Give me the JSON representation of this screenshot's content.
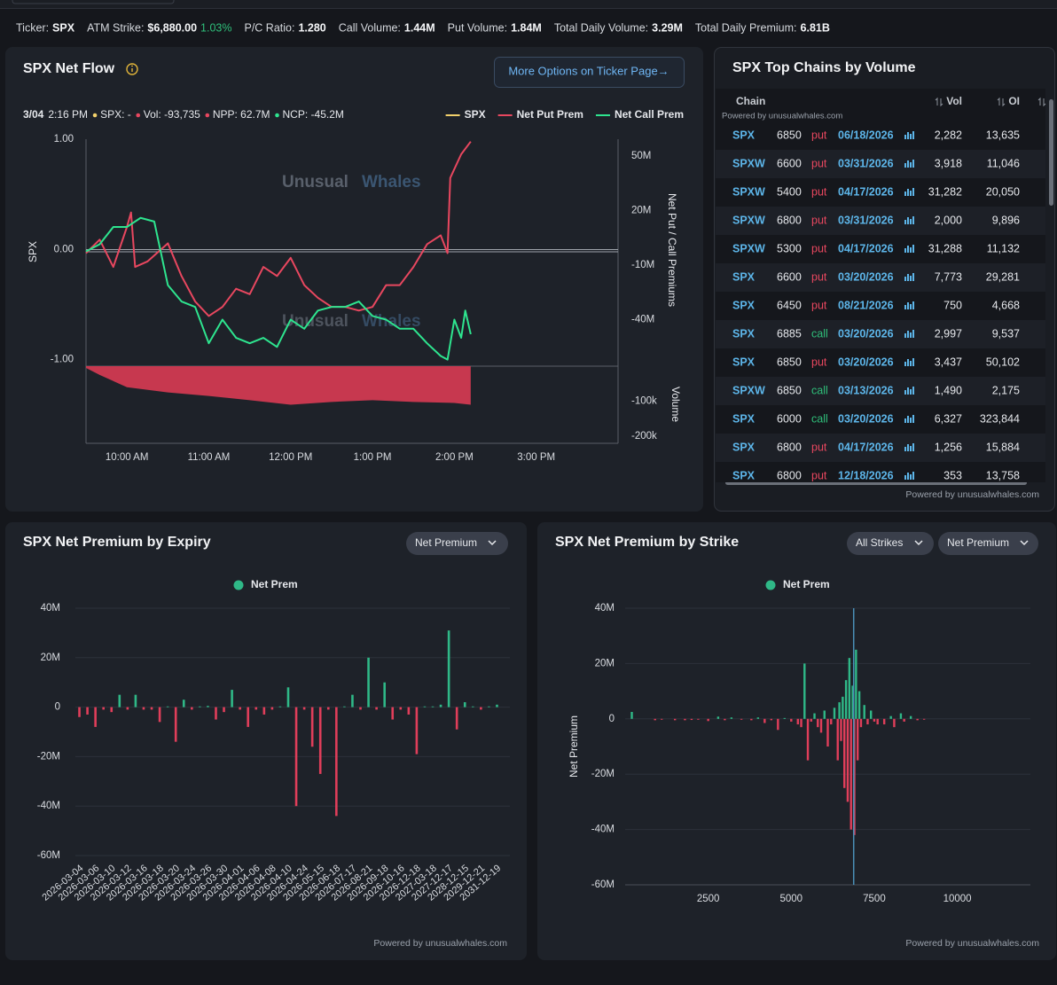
{
  "header": {
    "items": [
      {
        "label": "Ticker:",
        "value": "SPX"
      },
      {
        "label": "ATM Strike:",
        "value": "$6,880.00"
      },
      {
        "label": "P/C Ratio:",
        "value": "1.280"
      },
      {
        "label": "Call Volume:",
        "value": "1.44M"
      },
      {
        "label": "Put Volume:",
        "value": "1.84M"
      },
      {
        "label": "Total Daily Volume:",
        "value": "3.29M"
      },
      {
        "label": "Total Daily Premium:",
        "value": "6.81B"
      }
    ],
    "atm_change": "1.03%"
  },
  "powered_by": "Powered by unusualwhales.com",
  "net_flow": {
    "title": "SPX Net Flow",
    "button": "More Options on Ticker Page→",
    "tooltip": {
      "date": "3/04",
      "time": "2:16 PM",
      "spx": "SPX: -",
      "vol": "Vol: -93,735",
      "npp": "NPP: 62.7M",
      "ncp": "NCP: -45.2M"
    },
    "watermark": [
      "Unusual",
      "Whales"
    ],
    "chart": {
      "type": "line",
      "y_label": "SPX",
      "y2_label": "Net Put / Call Premiums",
      "y3_label": "Volume",
      "xlim": [
        "09:30",
        "16:00"
      ],
      "xticks": [
        {
          "value": "10:00",
          "label": "10:00 AM"
        },
        {
          "value": "11:00",
          "label": "11:00 AM"
        },
        {
          "value": "12:00",
          "label": "12:00 PM"
        },
        {
          "value": "13:00",
          "label": "1:00 PM"
        },
        {
          "value": "14:00",
          "label": "2:00 PM"
        },
        {
          "value": "15:00",
          "label": "3:00 PM"
        }
      ],
      "ylim": [
        -1.06,
        1.0
      ],
      "yticks": [
        {
          "value": 1,
          "label": "1.00"
        },
        {
          "value": 0,
          "label": "0.00"
        },
        {
          "value": -1,
          "label": "-1.00"
        }
      ],
      "y2lim": [
        -65600000,
        59300000
      ],
      "y2ticks": [
        {
          "value": 50000000,
          "label": "50M"
        },
        {
          "value": 20000000,
          "label": "20M"
        },
        {
          "value": -10000000,
          "label": "-10M"
        },
        {
          "value": -40000000,
          "label": "-40M"
        }
      ],
      "y3lim": [
        -220000,
        0
      ],
      "y3ticks": [
        {
          "value": -100000,
          "label": "-100k"
        },
        {
          "value": -200000,
          "label": "-200k"
        }
      ],
      "series": [
        {
          "name": "SPX",
          "color": "#f2d16b",
          "x": [],
          "values": []
        },
        {
          "name": "Net Put Prem",
          "color": "#e8475f",
          "axis": "y2",
          "x": [
            "09:30",
            "09:40",
            "09:50",
            "10:00",
            "10:03",
            "10:06",
            "10:15",
            "10:30",
            "10:40",
            "10:50",
            "11:00",
            "11:10",
            "11:20",
            "11:30",
            "11:40",
            "11:50",
            "12:00",
            "12:10",
            "12:20",
            "12:30",
            "12:40",
            "12:50",
            "13:00",
            "13:10",
            "13:20",
            "13:30",
            "13:40",
            "13:50",
            "13:55",
            "13:57",
            "14:05",
            "14:12"
          ],
          "values": [
            -3400000,
            4000000,
            -11000000,
            11000000,
            19000000,
            -11000000,
            -8000000,
            2000000,
            -16000000,
            -30000000,
            -38000000,
            -33000000,
            -23000000,
            -26000000,
            -11000000,
            -16000000,
            -6000000,
            -21000000,
            -28000000,
            -33000000,
            -33000000,
            -35000000,
            -33000000,
            -21000000,
            -21000000,
            -11000000,
            1500000,
            6400000,
            -3400000,
            38000000,
            51000000,
            58000000
          ]
        },
        {
          "name": "Net Call Prem",
          "color": "#2ee58f",
          "axis": "y2",
          "x": [
            "09:30",
            "09:40",
            "09:50",
            "10:00",
            "10:10",
            "10:20",
            "10:30",
            "10:40",
            "10:50",
            "11:00",
            "11:10",
            "11:20",
            "11:30",
            "11:40",
            "11:50",
            "12:00",
            "12:10",
            "12:20",
            "12:30",
            "12:40",
            "12:50",
            "13:00",
            "13:10",
            "13:20",
            "13:30",
            "13:40",
            "13:50",
            "13:55",
            "14:00",
            "14:05",
            "14:08",
            "14:12"
          ],
          "values": [
            -2500000,
            1500000,
            11000000,
            11000000,
            16000000,
            14000000,
            -21000000,
            -30000000,
            -33000000,
            -53000000,
            -40000000,
            -50000000,
            -53000000,
            -50000000,
            -55000000,
            -40000000,
            -45000000,
            -35000000,
            -33000000,
            -33000000,
            -30000000,
            -38000000,
            -40000000,
            -45000000,
            -45000000,
            -53000000,
            -60000000,
            -62000000,
            -40000000,
            -50000000,
            -35000000,
            -48000000
          ]
        }
      ],
      "volume": {
        "color": "#c7384f",
        "axis": "y3",
        "x": [
          "09:30",
          "09:40",
          "10:00",
          "10:30",
          "11:00",
          "11:30",
          "12:00",
          "12:30",
          "13:00",
          "13:30",
          "14:00",
          "14:12"
        ],
        "values": [
          -5000,
          -25000,
          -60000,
          -75000,
          -85000,
          -97000,
          -110000,
          -102000,
          -97000,
          -102000,
          -105000,
          -110000
        ]
      }
    }
  },
  "top_chains": {
    "title": "SPX Top Chains by Volume",
    "columns": [
      "Chain",
      "Vol",
      "OI"
    ],
    "rows": [
      [
        "SPX",
        "6850",
        "put",
        "06/18/2026",
        "2,282",
        "13,635"
      ],
      [
        "SPXW",
        "6600",
        "put",
        "03/31/2026",
        "3,918",
        "11,046"
      ],
      [
        "SPXW",
        "5400",
        "put",
        "04/17/2026",
        "31,282",
        "20,050"
      ],
      [
        "SPXW",
        "6800",
        "put",
        "03/31/2026",
        "2,000",
        "9,896"
      ],
      [
        "SPXW",
        "5300",
        "put",
        "04/17/2026",
        "31,288",
        "11,132"
      ],
      [
        "SPX",
        "6600",
        "put",
        "03/20/2026",
        "7,773",
        "29,281"
      ],
      [
        "SPX",
        "6450",
        "put",
        "08/21/2026",
        "750",
        "4,668"
      ],
      [
        "SPX",
        "6885",
        "call",
        "03/20/2026",
        "2,997",
        "9,537"
      ],
      [
        "SPX",
        "6850",
        "put",
        "03/20/2026",
        "3,437",
        "50,102"
      ],
      [
        "SPXW",
        "6850",
        "call",
        "03/13/2026",
        "1,490",
        "2,175"
      ],
      [
        "SPX",
        "6000",
        "call",
        "03/20/2026",
        "6,327",
        "323,844"
      ],
      [
        "SPX",
        "6800",
        "put",
        "04/17/2026",
        "1,256",
        "15,884"
      ],
      [
        "SPX",
        "6800",
        "put",
        "12/18/2026",
        "353",
        "13,758"
      ]
    ]
  },
  "expiry": {
    "title": "SPX Net Premium by Expiry",
    "dropdown": "Net Premium",
    "chart": {
      "type": "bar",
      "categories": [
        "2026-03-04",
        null,
        "2026-03-06",
        null,
        "2026-03-10",
        null,
        "2026-03-12",
        null,
        "2026-03-16",
        null,
        "2026-03-18",
        null,
        "2026-03-20",
        null,
        "2026-03-24",
        null,
        "2026-03-26",
        null,
        "2026-03-30",
        null,
        "2026-04-01",
        null,
        "2026-04-06",
        null,
        "2026-04-08",
        null,
        "2026-04-10",
        null,
        "2026-04-24",
        null,
        "2026-05-15",
        null,
        "2026-06-18",
        null,
        "2026-07-17",
        null,
        "2026-08-21",
        null,
        "2026-09-18",
        null,
        "2026-10-16",
        null,
        "2026-12-18",
        null,
        "2027-03-18",
        null,
        "2027-12-17",
        null,
        "2028-12-15",
        null,
        "2029-12-21",
        null,
        "2031-12-19"
      ],
      "series": [
        {
          "name": "Net Prem",
          "color": "#2fb887",
          "negative_color": "#e03e5a",
          "values": [
            -4000000,
            -3000000,
            -8000000,
            -1000000,
            -2000000,
            5000000,
            -1000000,
            5000000,
            -1000000,
            -1000000,
            -6000000,
            300000,
            -14000000,
            3000000,
            -1000000,
            300000,
            500000,
            -5000000,
            -2000000,
            7000000,
            -1000000,
            -8000000,
            -1000000,
            -3000000,
            -1000000,
            300000,
            8000000,
            -40000000,
            -1000000,
            -16000000,
            -27000000,
            -1000000,
            -44000000,
            300000,
            5000000,
            -1000000,
            20000000,
            -1000000,
            10000000,
            -5000000,
            -1000000,
            -3000000,
            -19000000,
            300000,
            300000,
            1000000,
            31000000,
            -9000000,
            2000000,
            300000,
            -1000000,
            300000,
            1000000
          ]
        }
      ],
      "ylim": [
        -60000000,
        40000000
      ],
      "yticks": [
        {
          "value": 40000000,
          "label": "40M"
        },
        {
          "value": 20000000,
          "label": "20M"
        },
        {
          "value": 0,
          "label": "0"
        },
        {
          "value": -20000000,
          "label": "-20M"
        },
        {
          "value": -40000000,
          "label": "-40M"
        },
        {
          "value": -60000000,
          "label": "-60M"
        }
      ],
      "grid": true
    }
  },
  "strike": {
    "title": "SPX Net Premium by Strike",
    "dropdowns": [
      "All Strikes",
      "Net Premium"
    ],
    "chart": {
      "type": "bar",
      "y_label": "Net Premium",
      "xlim": [
        0,
        12200
      ],
      "xticks": [
        2500,
        5000,
        7500,
        10000
      ],
      "ylim": [
        -60000000,
        40000000
      ],
      "yticks": [
        {
          "value": 40000000,
          "label": "40M"
        },
        {
          "value": 20000000,
          "label": "20M"
        },
        {
          "value": 0,
          "label": "0"
        },
        {
          "value": -20000000,
          "label": "-20M"
        },
        {
          "value": -40000000,
          "label": "-40M"
        },
        {
          "value": -60000000,
          "label": "-60M"
        }
      ],
      "grid": true,
      "marker_x": 6880,
      "marker_color": "#4a90b8",
      "series": [
        {
          "name": "Net Prem",
          "color": "#2fb887",
          "negative_color": "#e03e5a",
          "x": [
            200,
            900,
            1100,
            1500,
            1800,
            2000,
            2200,
            2500,
            2800,
            3000,
            3200,
            3500,
            3800,
            4000,
            4200,
            4400,
            4600,
            4800,
            5000,
            5200,
            5300,
            5400,
            5500,
            5600,
            5700,
            5800,
            5900,
            6000,
            6100,
            6200,
            6300,
            6400,
            6450,
            6500,
            6550,
            6600,
            6650,
            6700,
            6750,
            6800,
            6850,
            6900,
            6950,
            7000,
            7050,
            7100,
            7200,
            7300,
            7400,
            7500,
            7600,
            7800,
            8000,
            8100,
            8300,
            8400,
            8600,
            8800,
            9000
          ],
          "values": [
            2500000,
            -500000,
            -300000,
            -500000,
            -500000,
            -400000,
            -300000,
            -800000,
            800000,
            -500000,
            500000,
            -300000,
            -500000,
            500000,
            -1500000,
            -500000,
            -4000000,
            300000,
            -1000000,
            -2000000,
            -3000000,
            20000000,
            -15000000,
            -1000000,
            2000000,
            -3000000,
            -5000000,
            3000000,
            -10000000,
            -2000000,
            4000000,
            -15000000,
            6000000,
            -8000000,
            8000000,
            -25000000,
            14000000,
            -30000000,
            22000000,
            -40000000,
            12000000,
            -42000000,
            25000000,
            -15000000,
            10000000,
            -3000000,
            5000000,
            -2000000,
            3000000,
            -1000000,
            -2000000,
            -2000000,
            1000000,
            -3000000,
            2000000,
            -1000000,
            1000000,
            -500000,
            -300000
          ]
        }
      ]
    }
  }
}
